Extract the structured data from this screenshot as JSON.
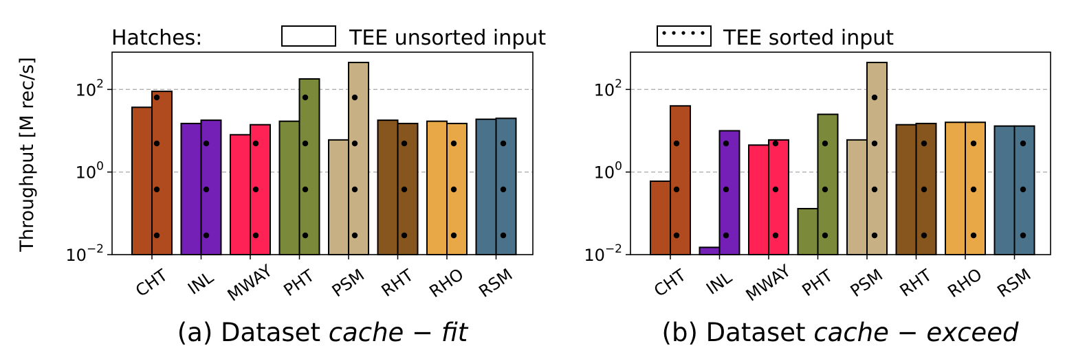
{
  "legend": {
    "title": "Hatches:",
    "entries": [
      {
        "label": "TEE unsorted input",
        "hatch": "none"
      },
      {
        "label": "TEE sorted input",
        "hatch": "dots"
      }
    ]
  },
  "ylabel": "Throughput [M rec/s]",
  "chart_data": [
    {
      "type": "bar",
      "caption_prefix": "(a) Dataset ",
      "caption_italic": "cache − fit",
      "categories": [
        "CHT",
        "INL",
        "MWAY",
        "PHT",
        "PSM",
        "RHT",
        "RHO",
        "RSM"
      ],
      "colors": [
        "#b04a1f",
        "#7420b6",
        "#ff2255",
        "#7a8a3a",
        "#c8b085",
        "#87561f",
        "#e8a848",
        "#4a728a"
      ],
      "yscale": "log",
      "ylim": [
        0.01,
        800
      ],
      "yticks": [
        0.01,
        1,
        100
      ],
      "ytick_labels": [
        {
          "base": "10",
          "exp": "−2"
        },
        {
          "base": "10",
          "exp": "0"
        },
        {
          "base": "10",
          "exp": "2"
        }
      ],
      "grid": "y-major dashed",
      "series": [
        {
          "name": "TEE unsorted input",
          "values": [
            37,
            15,
            8,
            17,
            6,
            18,
            17,
            19
          ]
        },
        {
          "name": "TEE sorted input",
          "values": [
            90,
            18,
            14,
            180,
            450,
            15,
            15,
            20
          ]
        }
      ]
    },
    {
      "type": "bar",
      "caption_prefix": "(b) Dataset ",
      "caption_italic": "cache − exceed",
      "categories": [
        "CHT",
        "INL",
        "MWAY",
        "PHT",
        "PSM",
        "RHT",
        "RHO",
        "RSM"
      ],
      "colors": [
        "#b04a1f",
        "#7420b6",
        "#ff2255",
        "#7a8a3a",
        "#c8b085",
        "#87561f",
        "#e8a848",
        "#4a728a"
      ],
      "yscale": "log",
      "ylim": [
        0.01,
        800
      ],
      "yticks": [
        0.01,
        1,
        100
      ],
      "ytick_labels": [
        {
          "base": "10",
          "exp": "−2"
        },
        {
          "base": "10",
          "exp": "0"
        },
        {
          "base": "10",
          "exp": "2"
        }
      ],
      "grid": "y-major dashed",
      "series": [
        {
          "name": "TEE unsorted input",
          "values": [
            0.6,
            0.015,
            4.5,
            0.13,
            6,
            14,
            16,
            13
          ]
        },
        {
          "name": "TEE sorted input",
          "values": [
            40,
            10,
            6,
            25,
            450,
            15,
            16,
            13
          ]
        }
      ]
    }
  ]
}
